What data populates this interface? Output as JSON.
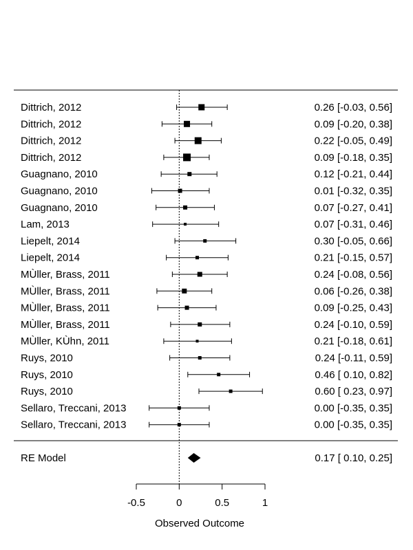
{
  "chart_data": {
    "type": "forest",
    "title": "",
    "xlabel": "Observed Outcome",
    "xlim": [
      -0.5,
      1
    ],
    "xticks": [
      -0.5,
      0,
      0.5,
      1
    ],
    "xtick_labels": [
      "-0.5",
      "0",
      "0.5",
      "1"
    ],
    "reference_line": 0,
    "studies": [
      {
        "label": "Dittrich, 2012",
        "estimate": 0.26,
        "lower": -0.03,
        "upper": 0.56,
        "ci_text": "0.26 [-0.03, 0.56]",
        "weight": 9
      },
      {
        "label": "Dittrich, 2012",
        "estimate": 0.09,
        "lower": -0.2,
        "upper": 0.38,
        "ci_text": "0.09 [-0.20, 0.38]",
        "weight": 9
      },
      {
        "label": "Dittrich, 2012",
        "estimate": 0.22,
        "lower": -0.05,
        "upper": 0.49,
        "ci_text": "0.22 [-0.05, 0.49]",
        "weight": 10
      },
      {
        "label": "Dittrich, 2012",
        "estimate": 0.09,
        "lower": -0.18,
        "upper": 0.35,
        "ci_text": "0.09 [-0.18, 0.35]",
        "weight": 11
      },
      {
        "label": "Guagnano, 2010",
        "estimate": 0.12,
        "lower": -0.21,
        "upper": 0.44,
        "ci_text": "0.12 [-0.21, 0.44]",
        "weight": 6
      },
      {
        "label": "Guagnano, 2010",
        "estimate": 0.01,
        "lower": -0.32,
        "upper": 0.35,
        "ci_text": "0.01 [-0.32, 0.35]",
        "weight": 6
      },
      {
        "label": "Guagnano, 2010",
        "estimate": 0.07,
        "lower": -0.27,
        "upper": 0.41,
        "ci_text": "0.07 [-0.27, 0.41]",
        "weight": 6
      },
      {
        "label": "Lam, 2013",
        "estimate": 0.07,
        "lower": -0.31,
        "upper": 0.46,
        "ci_text": "0.07 [-0.31, 0.46]",
        "weight": 4
      },
      {
        "label": "Liepelt, 2014",
        "estimate": 0.3,
        "lower": -0.05,
        "upper": 0.66,
        "ci_text": "0.30 [-0.05, 0.66]",
        "weight": 5
      },
      {
        "label": "Liepelt, 2014",
        "estimate": 0.21,
        "lower": -0.15,
        "upper": 0.57,
        "ci_text": "0.21 [-0.15, 0.57]",
        "weight": 5
      },
      {
        "label": "MÙller, Brass, 2011",
        "estimate": 0.24,
        "lower": -0.08,
        "upper": 0.56,
        "ci_text": "0.24 [-0.08, 0.56]",
        "weight": 7
      },
      {
        "label": "MÙller, Brass, 2011",
        "estimate": 0.06,
        "lower": -0.26,
        "upper": 0.38,
        "ci_text": "0.06 [-0.26, 0.38]",
        "weight": 7
      },
      {
        "label": "MÙller, Brass, 2011",
        "estimate": 0.09,
        "lower": -0.25,
        "upper": 0.43,
        "ci_text": "0.09 [-0.25, 0.43]",
        "weight": 6
      },
      {
        "label": "MÙller, Brass, 2011",
        "estimate": 0.24,
        "lower": -0.1,
        "upper": 0.59,
        "ci_text": "0.24 [-0.10, 0.59]",
        "weight": 6
      },
      {
        "label": "MÙller, KÙhn, 2011",
        "estimate": 0.21,
        "lower": -0.18,
        "upper": 0.61,
        "ci_text": "0.21 [-0.18, 0.61]",
        "weight": 4
      },
      {
        "label": "Ruys, 2010",
        "estimate": 0.24,
        "lower": -0.11,
        "upper": 0.59,
        "ci_text": "0.24 [-0.11, 0.59]",
        "weight": 5
      },
      {
        "label": "Ruys, 2010",
        "estimate": 0.46,
        "lower": 0.1,
        "upper": 0.82,
        "ci_text": "0.46 [ 0.10, 0.82]",
        "weight": 5
      },
      {
        "label": "Ruys, 2010",
        "estimate": 0.6,
        "lower": 0.23,
        "upper": 0.97,
        "ci_text": "0.60 [ 0.23, 0.97]",
        "weight": 5
      },
      {
        "label": "Sellaro, Treccani, 2013",
        "estimate": 0.0,
        "lower": -0.35,
        "upper": 0.35,
        "ci_text": "0.00 [-0.35, 0.35]",
        "weight": 5
      },
      {
        "label": "Sellaro, Treccani, 2013",
        "estimate": 0.0,
        "lower": -0.35,
        "upper": 0.35,
        "ci_text": "0.00 [-0.35, 0.35]",
        "weight": 5
      }
    ],
    "summary": {
      "label": "RE Model",
      "estimate": 0.17,
      "lower": 0.1,
      "upper": 0.25,
      "ci_text": "0.17 [ 0.10, 0.25]"
    }
  }
}
